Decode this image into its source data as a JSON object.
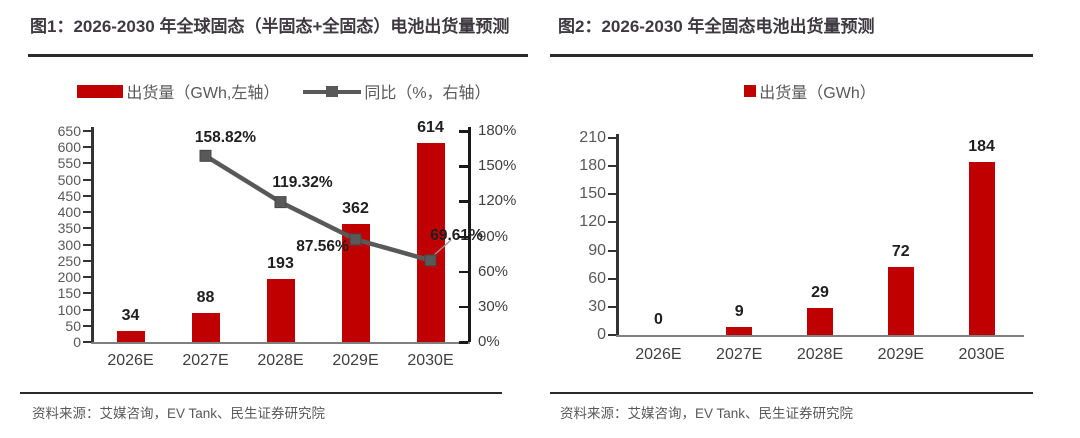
{
  "colors": {
    "bar_red": "#c00000",
    "line_gray": "#595959",
    "title_text": "#3d3a40",
    "rule_dark": "#2b2b2b",
    "tick_text": "#595959",
    "category_text": "#3f3f3f",
    "value_label": "#1f1f1f",
    "source_text": "#595959",
    "axis_line": "#333333",
    "baseline": "#7f7f7f",
    "right_axis_line": "#1a1a1a",
    "leader_line": "#999999"
  },
  "chart_data": [
    {
      "type": "bar+line",
      "title": "图1：2026-2030 年全球固态（半固态+全固态）电池出货量预测",
      "source": "资料来源：艾媒咨询，EV Tank、民生证券研究院",
      "categories": [
        "2026E",
        "2027E",
        "2028E",
        "2029E",
        "2030E"
      ],
      "series": [
        {
          "name": "出货量（GWh,左轴）",
          "type": "bar",
          "axis": "left",
          "values": [
            34,
            88,
            193,
            362,
            614
          ],
          "labels": [
            "34",
            "88",
            "193",
            "362",
            "614"
          ]
        },
        {
          "name": "同比（%，右轴）",
          "type": "line",
          "axis": "right",
          "values": [
            null,
            158.82,
            119.32,
            87.56,
            69.61
          ],
          "labels": [
            "",
            "158.82%",
            "119.32%",
            "87.56%",
            "69.61%"
          ]
        }
      ],
      "left_axis": {
        "min": 0,
        "max": 650,
        "step": 50,
        "ticks": [
          "650",
          "600",
          "550",
          "500",
          "450",
          "400",
          "350",
          "300",
          "250",
          "200",
          "150",
          "100",
          "50",
          "0"
        ]
      },
      "right_axis": {
        "min": 0,
        "max": 180,
        "step": 30,
        "ticks": [
          "180%",
          "150%",
          "120%",
          "90%",
          "60%",
          "30%",
          "0%"
        ]
      },
      "legend_position": "top",
      "grid": false
    },
    {
      "type": "bar",
      "title": "图2：2026-2030 年全固态电池出货量预测",
      "source": "资料来源：艾媒咨询，EV Tank、民生证券研究院",
      "categories": [
        "2026E",
        "2027E",
        "2028E",
        "2029E",
        "2030E"
      ],
      "series": [
        {
          "name": "出货量（GWh）",
          "type": "bar",
          "axis": "left",
          "values": [
            0,
            9,
            29,
            72,
            184
          ],
          "labels": [
            "0",
            "9",
            "29",
            "72",
            "184"
          ]
        }
      ],
      "left_axis": {
        "min": 0,
        "max": 210,
        "step": 30,
        "ticks": [
          "210",
          "180",
          "150",
          "120",
          "90",
          "60",
          "30",
          "0"
        ]
      },
      "legend_position": "top",
      "grid": false
    }
  ]
}
